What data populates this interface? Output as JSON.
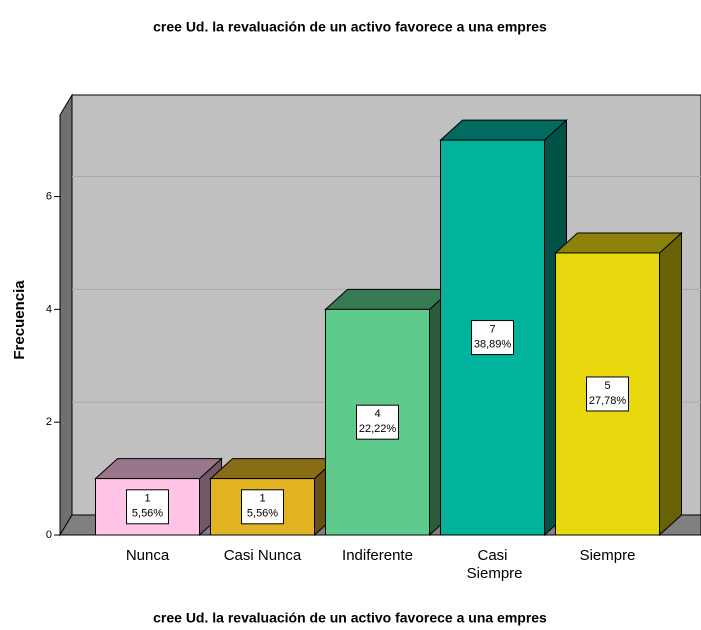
{
  "chart_data": {
    "type": "bar3d",
    "title": "cree Ud. la revaluación de un activo favorece a una empres",
    "xlabel": "cree Ud. la revaluación de un activo favorece a una empres",
    "ylabel": "Frecuencia",
    "categories": [
      "Nunca",
      "Casi Nunca",
      "Indiferente",
      "Casi Siempre",
      "Siempre"
    ],
    "values": [
      1,
      1,
      4,
      7,
      5
    ],
    "percent": [
      5.56,
      5.56,
      22.22,
      38.89,
      27.78
    ],
    "percent_labels": [
      "5,56%",
      "5,56%",
      "22,22%",
      "38,89%",
      "27,78%"
    ],
    "colors": [
      "#ffc4e6",
      "#e2b424",
      "#5ecb8c",
      "#00b39c",
      "#e8d80e"
    ],
    "ylim": [
      0,
      7.8
    ],
    "yticks": [
      0,
      2,
      4,
      6
    ],
    "grid": true
  }
}
